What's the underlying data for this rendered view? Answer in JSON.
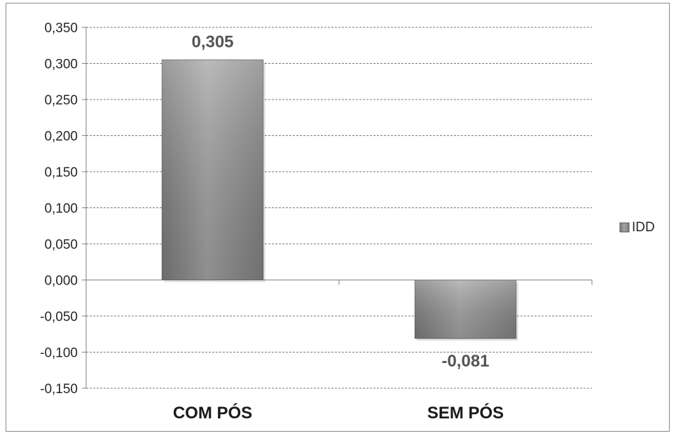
{
  "chart_data": {
    "type": "bar",
    "title": "",
    "xlabel": "",
    "ylabel": "",
    "categories": [
      "COM PÓS",
      "SEM PÓS"
    ],
    "series": [
      {
        "name": "IDD",
        "values": [
          0.305,
          -0.081
        ]
      }
    ],
    "data_labels": [
      "0,305",
      "-0,081"
    ],
    "ylim": [
      -0.15,
      0.35
    ],
    "yticks": [
      0.35,
      0.3,
      0.25,
      0.2,
      0.15,
      0.1,
      0.05,
      0.0,
      -0.05,
      -0.1,
      -0.15
    ],
    "ytick_labels": [
      "0,350",
      "0,300",
      "0,250",
      "0,200",
      "0,150",
      "0,100",
      "0,050",
      "0,000",
      "-0,050",
      "-0,100",
      "-0,150"
    ],
    "grid": true,
    "legend": {
      "position": "right",
      "entries": [
        "IDD"
      ]
    },
    "colors": {
      "bar": "#8c8c8c",
      "grid": "#7a7a7a",
      "axis": "#7f7f7f"
    }
  }
}
